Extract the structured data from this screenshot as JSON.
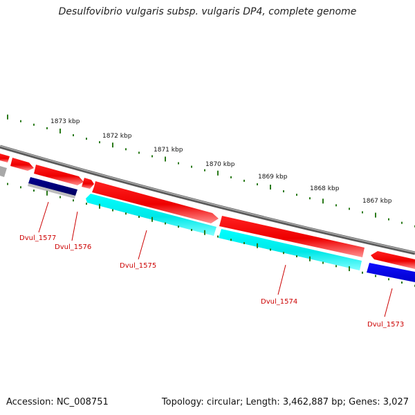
{
  "title": "Desulfovibrio vulgaris subsp. vulgaris DP4, complete genome",
  "footer": {
    "accession": "Accession: NC_008751",
    "summary": "Topology: circular; Length: 3,462,887 bp; Genes: 3,027"
  },
  "kbp_ticks": [
    "1873 kbp",
    "1872 kbp",
    "1871 kbp",
    "1870 kbp",
    "1869 kbp",
    "1868 kbp",
    "1867 kbp"
  ],
  "gene_labels": [
    "Dvul_1577",
    "Dvul_1576",
    "Dvul_1575",
    "Dvul_1574",
    "Dvul_1573"
  ],
  "colors": {
    "forward_gene": "#ff0000",
    "reverse_gene_cyan": "#00ffff",
    "reverse_gene_navy": "#000080",
    "reverse_gene_blue": "#0000ff",
    "backbone": "#808080",
    "ticks": "#2a7a1a",
    "label": "#cc0000"
  }
}
